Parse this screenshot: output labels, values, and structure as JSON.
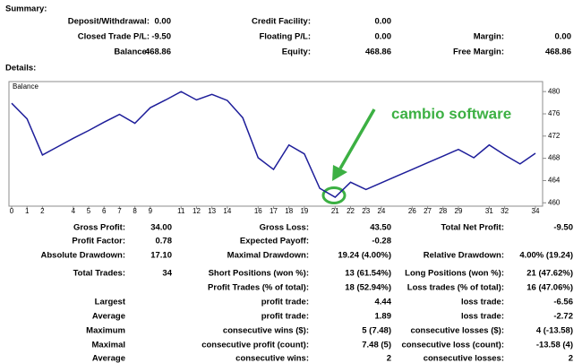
{
  "summary": {
    "title": "Summary:",
    "rows": [
      [
        {
          "label": "Deposit/Withdrawal:",
          "value": "0.00"
        },
        {
          "label": "Credit Facility:",
          "value": "0.00"
        },
        null
      ],
      [
        {
          "label": "Closed Trade P/L:",
          "value": "-9.50"
        },
        {
          "label": "Floating P/L:",
          "value": "0.00"
        },
        {
          "label": "Margin:",
          "value": "0.00"
        }
      ],
      [
        {
          "label": "Balance:",
          "value": "468.86"
        },
        {
          "label": "Equity:",
          "value": "468.86"
        },
        {
          "label": "Free Margin:",
          "value": "468.86"
        }
      ]
    ]
  },
  "details": {
    "title": "Details:",
    "rows": [
      [
        {
          "label": "Gross Profit:",
          "value": "34.00"
        },
        {
          "label": "Gross Loss:",
          "value": "43.50"
        },
        {
          "label": "Total Net Profit:",
          "value": "-9.50"
        }
      ],
      [
        {
          "label": "Profit Factor:",
          "value": "0.78"
        },
        {
          "label": "Expected Payoff:",
          "value": "-0.28"
        },
        null
      ],
      [
        {
          "label": "Absolute Drawdown:",
          "value": "17.10"
        },
        {
          "label": "Maximal Drawdown:",
          "value": "19.24 (4.00%)"
        },
        {
          "label": "Relative Drawdown:",
          "value": "4.00% (19.24)"
        }
      ],
      [
        {
          "label": "Total Trades:",
          "value": "34"
        },
        {
          "label": "Short Positions (won %):",
          "value": "13 (61.54%)"
        },
        {
          "label": "Long Positions (won %):",
          "value": "21 (47.62%)"
        }
      ],
      [
        null,
        {
          "label": "Profit Trades (% of total):",
          "value": "18 (52.94%)"
        },
        {
          "label": "Loss trades (% of total):",
          "value": "16 (47.06%)"
        }
      ],
      [
        {
          "label": "Largest"
        },
        {
          "label": "profit trade:",
          "value": "4.44"
        },
        {
          "label": "loss trade:",
          "value": "-6.56"
        }
      ],
      [
        {
          "label": "Average"
        },
        {
          "label": "profit trade:",
          "value": "1.89"
        },
        {
          "label": "loss trade:",
          "value": "-2.72"
        }
      ],
      [
        {
          "label": "Maximum"
        },
        {
          "label": "consecutive wins ($):",
          "value": "5 (7.48)"
        },
        {
          "label": "consecutive losses ($):",
          "value": "4 (-13.58)"
        }
      ],
      [
        {
          "label": "Maximal"
        },
        {
          "label": "consecutive profit (count):",
          "value": "7.48 (5)"
        },
        {
          "label": "consecutive loss (count):",
          "value": "-13.58 (4)"
        }
      ],
      [
        {
          "label": "Average"
        },
        {
          "label": "consecutive wins:",
          "value": "2"
        },
        {
          "label": "consecutive losses:",
          "value": "2"
        }
      ]
    ]
  },
  "chart_data": {
    "type": "line",
    "annotation": "cambio software",
    "x": [
      0,
      1,
      2,
      3,
      4,
      5,
      6,
      7,
      8,
      9,
      10,
      11,
      12,
      13,
      14,
      15,
      16,
      17,
      18,
      19,
      20,
      21,
      22,
      23,
      24,
      25,
      26,
      27,
      28,
      29,
      30,
      31,
      32,
      33,
      34
    ],
    "series": [
      {
        "name": "Balance",
        "color": "#1e1e9a",
        "values": [
          477.9,
          475.1,
          468.6,
          470.1,
          471.6,
          473.0,
          474.5,
          475.9,
          474.3,
          477.1,
          478.5,
          480.0,
          478.5,
          479.5,
          478.4,
          475.3,
          468.1,
          466.0,
          470.4,
          468.8,
          462.6,
          461.0,
          463.7,
          462.4,
          463.6,
          464.8,
          466.0,
          467.2,
          468.4,
          469.6,
          468.1,
          470.4,
          468.6,
          467.0,
          468.9
        ]
      }
    ],
    "xlim": [
      0,
      34
    ],
    "xticks": [
      0,
      1,
      2,
      4,
      5,
      6,
      7,
      8,
      9,
      11,
      12,
      13,
      14,
      16,
      17,
      18,
      19,
      21,
      22,
      23,
      24,
      26,
      27,
      28,
      29,
      31,
      32,
      34
    ],
    "ylim": [
      459.4,
      481.8
    ],
    "yticks": [
      460,
      464,
      468,
      472,
      476,
      480
    ],
    "grid": false
  }
}
